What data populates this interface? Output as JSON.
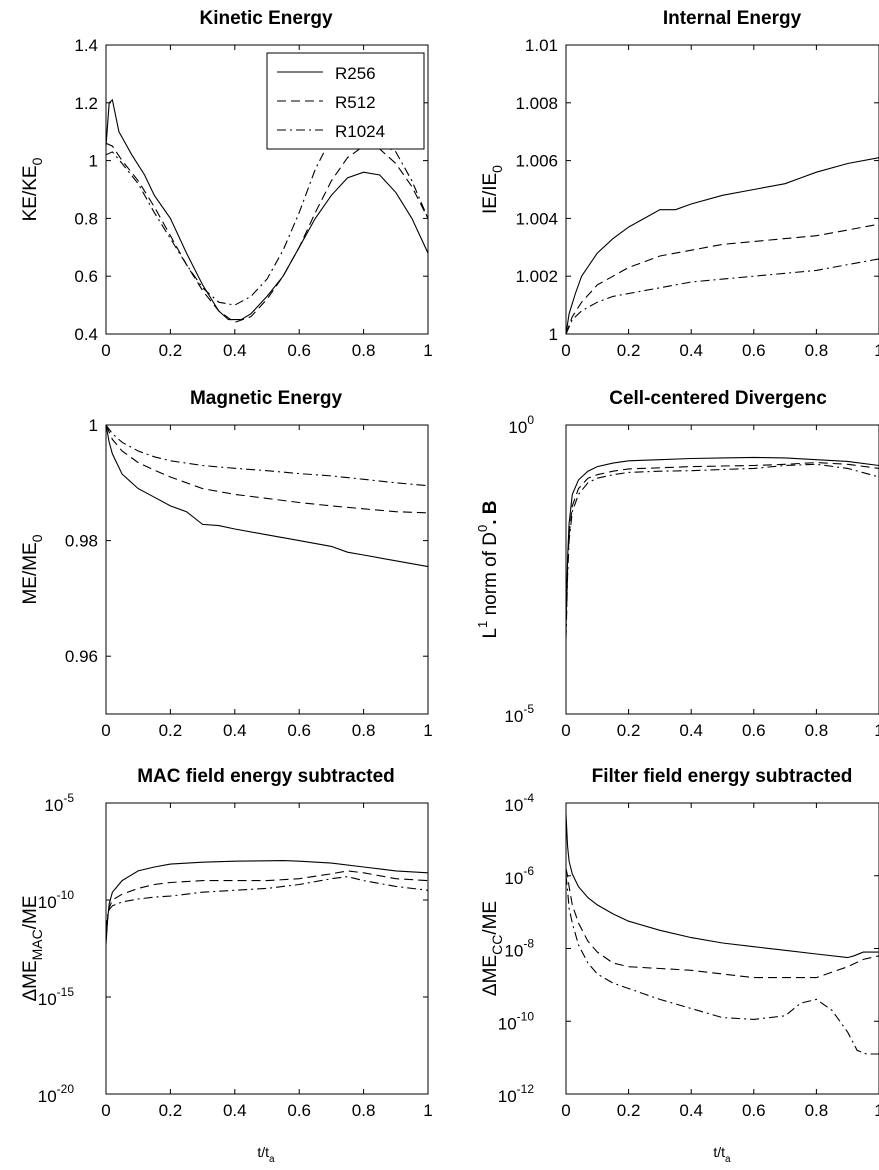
{
  "figure": {
    "xlabel_left": "t/t",
    "xlabel_right": "t/t",
    "xlabel_sub": "a"
  },
  "legend": {
    "placement": "top-right",
    "entries": [
      "R256",
      "R512",
      "R1024"
    ]
  },
  "chart_data": [
    {
      "type": "line",
      "title": "Kinetic Energy",
      "ylabel": "KE/KE",
      "ylabel_sub": "0",
      "xlim": [
        0,
        1
      ],
      "ylim": [
        0.4,
        1.4
      ],
      "xticks": [
        "0",
        "0.2",
        "0.4",
        "0.6",
        "0.8",
        "1"
      ],
      "yticks": [
        "0.4",
        "0.6",
        "0.8",
        "1",
        "1.2",
        "1.4"
      ],
      "series": [
        {
          "name": "R256",
          "style": "solid",
          "x": [
            0,
            0.01,
            0.02,
            0.04,
            0.08,
            0.12,
            0.15,
            0.2,
            0.25,
            0.3,
            0.35,
            0.38,
            0.42,
            0.45,
            0.5,
            0.55,
            0.6,
            0.65,
            0.7,
            0.75,
            0.8,
            0.85,
            0.9,
            0.95,
            1.0
          ],
          "y": [
            1.05,
            1.2,
            1.21,
            1.1,
            1.02,
            0.95,
            0.88,
            0.8,
            0.68,
            0.57,
            0.48,
            0.45,
            0.45,
            0.47,
            0.53,
            0.6,
            0.7,
            0.8,
            0.88,
            0.94,
            0.96,
            0.95,
            0.89,
            0.8,
            0.68
          ]
        },
        {
          "name": "R512",
          "style": "dashed",
          "x": [
            0,
            0.02,
            0.05,
            0.1,
            0.15,
            0.2,
            0.25,
            0.3,
            0.35,
            0.4,
            0.45,
            0.5,
            0.55,
            0.6,
            0.65,
            0.7,
            0.75,
            0.8,
            0.85,
            0.9,
            0.95,
            1.0
          ],
          "y": [
            1.06,
            1.05,
            1.0,
            0.93,
            0.84,
            0.74,
            0.64,
            0.55,
            0.48,
            0.44,
            0.46,
            0.52,
            0.6,
            0.7,
            0.82,
            0.93,
            1.01,
            1.05,
            1.04,
            0.99,
            0.91,
            0.8
          ]
        },
        {
          "name": "R1024",
          "style": "dashdot",
          "x": [
            0,
            0.02,
            0.05,
            0.1,
            0.15,
            0.2,
            0.25,
            0.3,
            0.35,
            0.4,
            0.45,
            0.5,
            0.55,
            0.6,
            0.65,
            0.7,
            0.75,
            0.8,
            0.85,
            0.9,
            0.95,
            1.0
          ],
          "y": [
            1.02,
            1.03,
            0.99,
            0.92,
            0.82,
            0.73,
            0.64,
            0.56,
            0.51,
            0.5,
            0.53,
            0.59,
            0.69,
            0.82,
            0.97,
            1.08,
            1.1,
            1.08,
            1.06,
            1.03,
            0.93,
            0.8
          ]
        }
      ]
    },
    {
      "type": "line",
      "title": "Internal Energy",
      "ylabel": "IE/IE",
      "ylabel_sub": "0",
      "xlim": [
        0,
        1
      ],
      "ylim": [
        1.0,
        1.01
      ],
      "xticks": [
        "0",
        "0.2",
        "0.4",
        "0.6",
        "0.8",
        "1"
      ],
      "yticks": [
        "1",
        "1.002",
        "1.004",
        "1.006",
        "1.008",
        "1.01"
      ],
      "series": [
        {
          "name": "R256",
          "style": "solid",
          "x": [
            0,
            0.01,
            0.03,
            0.05,
            0.1,
            0.15,
            0.2,
            0.25,
            0.3,
            0.35,
            0.4,
            0.5,
            0.6,
            0.7,
            0.75,
            0.8,
            0.9,
            1.0
          ],
          "y": [
            1.0,
            1.0007,
            1.0014,
            1.002,
            1.0028,
            1.0033,
            1.0037,
            1.004,
            1.0043,
            1.0043,
            1.0045,
            1.0048,
            1.005,
            1.0052,
            1.0054,
            1.0056,
            1.0059,
            1.0061
          ]
        },
        {
          "name": "R512",
          "style": "dashed",
          "x": [
            0,
            0.02,
            0.05,
            0.1,
            0.15,
            0.2,
            0.25,
            0.3,
            0.4,
            0.5,
            0.6,
            0.7,
            0.8,
            0.9,
            1.0
          ],
          "y": [
            1.0,
            1.0006,
            1.0011,
            1.0017,
            1.002,
            1.0023,
            1.0025,
            1.0027,
            1.0029,
            1.0031,
            1.0032,
            1.0033,
            1.0034,
            1.0036,
            1.0038
          ]
        },
        {
          "name": "R1024",
          "style": "dashdot",
          "x": [
            0,
            0.02,
            0.05,
            0.1,
            0.15,
            0.2,
            0.25,
            0.3,
            0.4,
            0.5,
            0.6,
            0.7,
            0.8,
            0.9,
            1.0
          ],
          "y": [
            1.0,
            1.0005,
            1.0008,
            1.0011,
            1.0013,
            1.0014,
            1.0015,
            1.0016,
            1.0018,
            1.0019,
            1.002,
            1.0021,
            1.0022,
            1.0024,
            1.0026
          ]
        }
      ]
    },
    {
      "type": "line",
      "title": "Magnetic Energy",
      "ylabel": "ME/ME",
      "ylabel_sub": "0",
      "xlim": [
        0,
        1
      ],
      "ylim": [
        0.95,
        1.0
      ],
      "xticks": [
        "0",
        "0.2",
        "0.4",
        "0.6",
        "0.8",
        "1"
      ],
      "yticks": [
        "0.96",
        "0.98",
        "1"
      ],
      "series": [
        {
          "name": "R256",
          "style": "solid",
          "x": [
            0,
            0.01,
            0.02,
            0.05,
            0.1,
            0.15,
            0.2,
            0.25,
            0.3,
            0.35,
            0.4,
            0.5,
            0.6,
            0.7,
            0.75,
            0.8,
            0.9,
            1.0
          ],
          "y": [
            1.0,
            0.997,
            0.995,
            0.9915,
            0.989,
            0.9875,
            0.986,
            0.985,
            0.9828,
            0.9826,
            0.982,
            0.981,
            0.98,
            0.979,
            0.978,
            0.9775,
            0.9765,
            0.9755
          ]
        },
        {
          "name": "R512",
          "style": "dashed",
          "x": [
            0,
            0.02,
            0.05,
            0.1,
            0.15,
            0.2,
            0.3,
            0.4,
            0.5,
            0.6,
            0.7,
            0.8,
            0.9,
            1.0
          ],
          "y": [
            1.0,
            0.9975,
            0.9955,
            0.9935,
            0.9922,
            0.991,
            0.989,
            0.988,
            0.9873,
            0.9866,
            0.986,
            0.9855,
            0.985,
            0.9848
          ]
        },
        {
          "name": "R1024",
          "style": "dashdot",
          "x": [
            0,
            0.02,
            0.05,
            0.1,
            0.15,
            0.2,
            0.3,
            0.4,
            0.5,
            0.6,
            0.7,
            0.8,
            0.9,
            1.0
          ],
          "y": [
            1.0,
            0.9985,
            0.997,
            0.9955,
            0.9945,
            0.9938,
            0.993,
            0.9925,
            0.9921,
            0.9916,
            0.9912,
            0.9906,
            0.99,
            0.9895
          ]
        }
      ]
    },
    {
      "type": "line",
      "title": "Cell-centered Divergenc",
      "ylabel": "L",
      "ylabel_sup": "1",
      "ylabel_mid": " norm of D",
      "ylabel_sup2": "0",
      "ylabel_end": ". B",
      "xlim": [
        0,
        1
      ],
      "ylim_exp": [
        -5,
        0
      ],
      "log_y": true,
      "xticks": [
        "0",
        "0.2",
        "0.4",
        "0.6",
        "0.8",
        "1"
      ],
      "yticks": [
        {
          "base": "10",
          "exp": "-5"
        },
        {
          "base": "10",
          "exp": "0"
        }
      ],
      "series": [
        {
          "name": "R256",
          "style": "solid",
          "x": [
            0,
            0.005,
            0.01,
            0.02,
            0.04,
            0.07,
            0.1,
            0.15,
            0.2,
            0.3,
            0.4,
            0.5,
            0.6,
            0.7,
            0.8,
            0.9,
            1.0
          ],
          "y": [
            -3.5,
            -2.3,
            -1.7,
            -1.2,
            -0.95,
            -0.8,
            -0.72,
            -0.66,
            -0.62,
            -0.6,
            -0.58,
            -0.57,
            -0.56,
            -0.57,
            -0.6,
            -0.63,
            -0.7
          ]
        },
        {
          "name": "R512",
          "style": "dashed",
          "x": [
            0,
            0.005,
            0.01,
            0.02,
            0.04,
            0.07,
            0.1,
            0.15,
            0.2,
            0.3,
            0.4,
            0.5,
            0.6,
            0.7,
            0.8,
            0.9,
            1.0
          ],
          "y": [
            -3.6,
            -2.5,
            -1.9,
            -1.4,
            -1.1,
            -0.92,
            -0.86,
            -0.8,
            -0.76,
            -0.74,
            -0.72,
            -0.71,
            -0.7,
            -0.68,
            -0.65,
            -0.68,
            -0.75
          ]
        },
        {
          "name": "R1024",
          "style": "dashdot",
          "x": [
            0,
            0.005,
            0.01,
            0.02,
            0.04,
            0.07,
            0.1,
            0.15,
            0.2,
            0.3,
            0.4,
            0.5,
            0.6,
            0.7,
            0.8,
            0.9,
            1.0
          ],
          "y": [
            -3.7,
            -2.6,
            -2.0,
            -1.5,
            -1.2,
            -1.0,
            -0.92,
            -0.86,
            -0.82,
            -0.8,
            -0.79,
            -0.77,
            -0.75,
            -0.7,
            -0.68,
            -0.75,
            -0.9
          ]
        }
      ]
    },
    {
      "type": "line",
      "title": "MAC field energy subtracted",
      "ylabel": "ΔME",
      "ylabel_sub": "MAC",
      "ylabel_end": "/ME",
      "xlim": [
        0,
        1
      ],
      "ylim_exp": [
        -20,
        -5
      ],
      "log_y": true,
      "xticks": [
        "0",
        "0.2",
        "0.4",
        "0.6",
        "0.8",
        "1"
      ],
      "yticks": [
        {
          "base": "10",
          "exp": "-20"
        },
        {
          "base": "10",
          "exp": "-15"
        },
        {
          "base": "10",
          "exp": "-10"
        },
        {
          "base": "10",
          "exp": "-5"
        }
      ],
      "series": [
        {
          "name": "R256",
          "style": "solid",
          "x": [
            0,
            0.005,
            0.01,
            0.02,
            0.05,
            0.1,
            0.15,
            0.2,
            0.3,
            0.4,
            0.5,
            0.55,
            0.6,
            0.7,
            0.8,
            0.9,
            1.0
          ],
          "y": [
            -12.3,
            -11.0,
            -10.2,
            -9.6,
            -9.0,
            -8.5,
            -8.3,
            -8.15,
            -8.05,
            -8.0,
            -7.98,
            -7.97,
            -8.0,
            -8.1,
            -8.3,
            -8.5,
            -8.6
          ]
        },
        {
          "name": "R512",
          "style": "dashed",
          "x": [
            0,
            0.005,
            0.01,
            0.02,
            0.05,
            0.1,
            0.15,
            0.2,
            0.3,
            0.4,
            0.5,
            0.6,
            0.7,
            0.75,
            0.8,
            0.9,
            1.0
          ],
          "y": [
            -12.0,
            -11.0,
            -10.4,
            -10.0,
            -9.7,
            -9.4,
            -9.2,
            -9.1,
            -9.0,
            -9.0,
            -9.0,
            -8.9,
            -8.65,
            -8.5,
            -8.6,
            -8.9,
            -9.0
          ]
        },
        {
          "name": "R1024",
          "style": "dashdot",
          "x": [
            0,
            0.005,
            0.01,
            0.02,
            0.05,
            0.1,
            0.15,
            0.2,
            0.3,
            0.4,
            0.5,
            0.6,
            0.7,
            0.75,
            0.8,
            0.9,
            1.0
          ],
          "y": [
            -11.5,
            -10.8,
            -10.5,
            -10.3,
            -10.1,
            -9.95,
            -9.85,
            -9.8,
            -9.6,
            -9.5,
            -9.4,
            -9.2,
            -8.9,
            -8.8,
            -9.0,
            -9.3,
            -9.5
          ]
        }
      ]
    },
    {
      "type": "line",
      "title": "Filter field energy subtracted",
      "ylabel": "ΔME",
      "ylabel_sub": "CC",
      "ylabel_end": "/ME",
      "xlim": [
        0,
        1
      ],
      "ylim_exp": [
        -12,
        -4
      ],
      "log_y": true,
      "xticks": [
        "0",
        "0.2",
        "0.4",
        "0.6",
        "0.8",
        "1"
      ],
      "yticks": [
        {
          "base": "10",
          "exp": "-12"
        },
        {
          "base": "10",
          "exp": "-10"
        },
        {
          "base": "10",
          "exp": "-8"
        },
        {
          "base": "10",
          "exp": "-6"
        },
        {
          "base": "10",
          "exp": "-4"
        }
      ],
      "series": [
        {
          "name": "R256",
          "style": "solid",
          "x": [
            0,
            0.005,
            0.01,
            0.02,
            0.04,
            0.07,
            0.1,
            0.15,
            0.2,
            0.3,
            0.4,
            0.5,
            0.6,
            0.7,
            0.8,
            0.9,
            0.92,
            0.95,
            1.0
          ],
          "y": [
            -4.3,
            -5.2,
            -5.6,
            -5.95,
            -6.3,
            -6.6,
            -6.8,
            -7.05,
            -7.25,
            -7.5,
            -7.7,
            -7.85,
            -7.95,
            -8.05,
            -8.15,
            -8.25,
            -8.2,
            -8.1,
            -8.1
          ]
        },
        {
          "name": "R512",
          "style": "dashed",
          "x": [
            0,
            0.005,
            0.01,
            0.02,
            0.04,
            0.07,
            0.1,
            0.15,
            0.2,
            0.3,
            0.4,
            0.5,
            0.6,
            0.7,
            0.8,
            0.9,
            0.95,
            1.0
          ],
          "y": [
            -5.8,
            -6.0,
            -6.3,
            -6.8,
            -7.3,
            -7.8,
            -8.1,
            -8.4,
            -8.5,
            -8.55,
            -8.6,
            -8.7,
            -8.8,
            -8.8,
            -8.8,
            -8.5,
            -8.3,
            -8.2
          ]
        },
        {
          "name": "R1024",
          "style": "dashdot",
          "x": [
            0,
            0.005,
            0.01,
            0.02,
            0.04,
            0.07,
            0.1,
            0.15,
            0.2,
            0.25,
            0.3,
            0.4,
            0.5,
            0.6,
            0.7,
            0.75,
            0.8,
            0.85,
            0.9,
            0.93,
            0.96,
            1.0
          ],
          "y": [
            -6.0,
            -6.4,
            -6.9,
            -7.3,
            -7.9,
            -8.4,
            -8.7,
            -8.95,
            -9.1,
            -9.25,
            -9.4,
            -9.65,
            -9.9,
            -9.95,
            -9.85,
            -9.5,
            -9.4,
            -9.7,
            -10.3,
            -10.8,
            -10.9,
            -10.9
          ]
        }
      ]
    }
  ]
}
